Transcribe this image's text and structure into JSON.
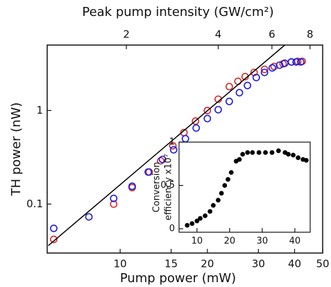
{
  "chart_data": [
    {
      "type": "scatter",
      "x2label": "Peak pump intensity (GW/cm²)",
      "xlabel": "Pump power (mW)",
      "ylabel": "TH power (nW)",
      "xscale": "log",
      "yscale": "log",
      "x2scale": "log",
      "xlim": [
        5.6,
        50
      ],
      "ylim": [
        0.03,
        5
      ],
      "xticks": [
        10,
        15,
        20,
        30,
        40,
        50
      ],
      "yticks": [
        0.1,
        1
      ],
      "x2lim": [
        1.1,
        8.8
      ],
      "x2ticks": [
        2,
        4,
        6,
        8
      ],
      "series": [
        {
          "color": "#d42a2a",
          "marker": "open",
          "x": [
            5.9,
            9.5,
            11,
            12.6,
            13.8,
            15.2,
            16.6,
            18.2,
            20,
            21.8,
            23.8,
            25.5,
            27,
            29,
            31.5,
            34,
            36.5,
            39,
            41,
            42.5
          ],
          "values": [
            0.042,
            0.1,
            0.15,
            0.22,
            0.29,
            0.42,
            0.58,
            0.77,
            1.0,
            1.32,
            1.8,
            2.05,
            2.3,
            2.55,
            2.75,
            2.95,
            3.15,
            3.3,
            3.35,
            3.35
          ]
        },
        {
          "color": "#1c1ce0",
          "marker": "open",
          "x": [
            5.9,
            7.8,
            9.5,
            11,
            12.5,
            14,
            15.3,
            16.8,
            18.3,
            20,
            21.8,
            23.8,
            25.8,
            27.5,
            29.5,
            31.5,
            33.5,
            35.5,
            37,
            39,
            40.5,
            42
          ],
          "values": [
            0.055,
            0.073,
            0.115,
            0.155,
            0.22,
            0.3,
            0.38,
            0.5,
            0.65,
            0.82,
            1.02,
            1.25,
            1.55,
            1.85,
            2.25,
            2.55,
            2.85,
            3.05,
            3.2,
            3.3,
            3.3,
            3.3
          ]
        },
        {
          "color": "#000000",
          "style": "line",
          "x": [
            5.65,
            37
          ],
          "values": [
            0.036,
            5.0
          ]
        }
      ]
    },
    {
      "type": "scatter",
      "ylabel": [
        "Conversion",
        "efficiency x10⁷"
      ],
      "xscale": "linear",
      "yscale": "linear",
      "xlim": [
        4.5,
        44.7
      ],
      "ylim": [
        -0.04,
        1
      ],
      "xticks": [
        10,
        20,
        30,
        40
      ],
      "yticks": [
        0,
        0.5,
        1
      ],
      "series": [
        {
          "color": "#000000",
          "marker": "filled",
          "x": [
            7,
            8.5,
            10,
            11,
            12.5,
            14,
            15,
            16.5,
            17.5,
            18.5,
            19.5,
            20.5,
            22,
            23,
            24,
            25.5,
            27,
            29,
            31,
            33,
            35,
            37,
            38,
            39.5,
            41,
            42.5,
            43.5
          ],
          "values": [
            0.04,
            0.06,
            0.09,
            0.12,
            0.15,
            0.2,
            0.27,
            0.33,
            0.41,
            0.5,
            0.57,
            0.65,
            0.78,
            0.8,
            0.86,
            0.88,
            0.88,
            0.88,
            0.88,
            0.88,
            0.9,
            0.88,
            0.86,
            0.85,
            0.82,
            0.8,
            0.79
          ]
        }
      ]
    }
  ]
}
